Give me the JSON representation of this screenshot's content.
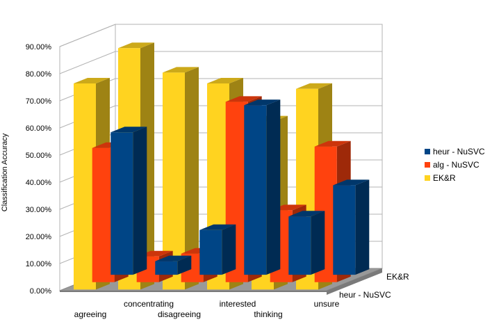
{
  "chart_data": {
    "type": "bar",
    "style": "3d-clustered",
    "title": "",
    "xlabel": "",
    "ylabel": "Classification Accuracy",
    "ylim": [
      0,
      90
    ],
    "yticks": [
      "0.00%",
      "10.00%",
      "20.00%",
      "30.00%",
      "40.00%",
      "50.00%",
      "60.00%",
      "70.00%",
      "80.00%",
      "90.00%"
    ],
    "categories": [
      "agreeing",
      "concentrating",
      "disagreeing",
      "interested",
      "thinking",
      "unsure"
    ],
    "series": [
      {
        "name": "heur - NuSVC",
        "color": "#004586",
        "values": [
          52.5,
          5,
          16.5,
          62.5,
          21.5,
          33
        ]
      },
      {
        "name": "alg - NuSVC",
        "color": "#ff420e",
        "values": [
          49.5,
          9.5,
          10.5,
          66.5,
          26.5,
          50
        ]
      },
      {
        "name": "EK&R",
        "color": "#ffd320",
        "values": [
          76,
          89,
          80,
          76,
          62,
          74
        ]
      }
    ],
    "depth_axis_labels": [
      "EK&R",
      "heur - NuSVC"
    ],
    "legend_position": "right",
    "grid": true
  }
}
